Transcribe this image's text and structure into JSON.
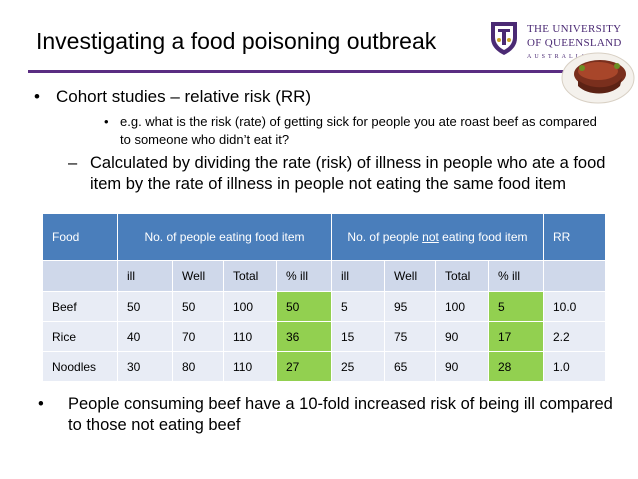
{
  "slide": {
    "title": "Investigating a food poisoning outbreak",
    "logo": {
      "line1": "THE UNIVERSITY",
      "line2": "OF QUEENSLAND",
      "line3": "AUSTRALIA",
      "accent_color": "#4b2a74"
    },
    "bullets": {
      "b1_marker": "•",
      "b1": "Cohort studies – relative risk (RR)",
      "b2_marker": "•",
      "b2": "e.g. what is the risk (rate) of getting sick for people you ate roast beef as compared to someone who didn’t eat it?",
      "b3_marker": "–",
      "b3": "Calculated by dividing the rate (risk) of illness in people who ate a food item by the rate of illness in people not eating the same food item",
      "b4_marker": "•",
      "b4": "People consuming beef have a 10-fold increased risk of being ill compared to those not eating beef"
    },
    "table": {
      "header": {
        "food": "Food",
        "eating": "No. of people eating food item",
        "not_pre": "No. of people ",
        "not_word": "not",
        "not_post": " eating food item",
        "rr": "RR"
      },
      "subheader": [
        "ill",
        "Well",
        "Total",
        "% ill",
        "ill",
        "Well",
        "Total",
        "% ill"
      ],
      "rows": [
        {
          "food": "Beef",
          "cells": [
            "50",
            "50",
            "100",
            "50",
            "5",
            "95",
            "100",
            "5"
          ],
          "rr": "10.0"
        },
        {
          "food": "Rice",
          "cells": [
            "40",
            "70",
            "110",
            "36",
            "15",
            "75",
            "90",
            "17"
          ],
          "rr": "2.2"
        },
        {
          "food": "Noodles",
          "cells": [
            "30",
            "80",
            "110",
            "27",
            "25",
            "65",
            "90",
            "28"
          ],
          "rr": "1.0"
        }
      ],
      "colors": {
        "header": "#4a7ebb",
        "subheader": "#cfd8ea",
        "row": "#e8ecf5",
        "highlight": "#92d050"
      }
    }
  }
}
